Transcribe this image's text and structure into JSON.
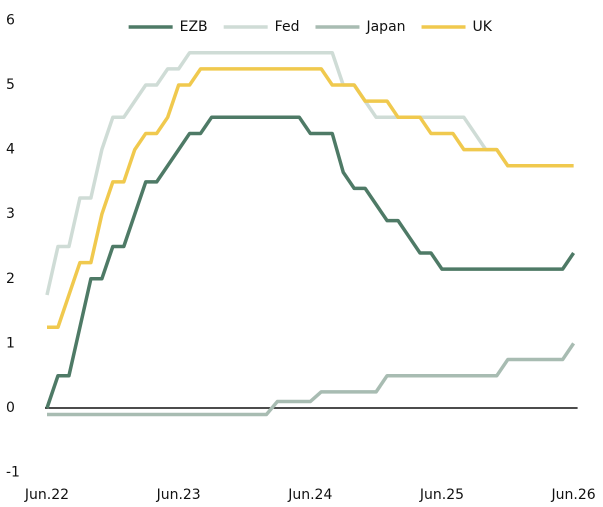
{
  "chart_data": {
    "type": "line",
    "x": [
      "2022-06",
      "2022-07",
      "2022-08",
      "2022-09",
      "2022-10",
      "2022-11",
      "2022-12",
      "2023-01",
      "2023-02",
      "2023-03",
      "2023-04",
      "2023-05",
      "2023-06",
      "2023-07",
      "2023-08",
      "2023-09",
      "2023-10",
      "2023-11",
      "2023-12",
      "2024-01",
      "2024-02",
      "2024-03",
      "2024-04",
      "2024-05",
      "2024-06",
      "2024-07",
      "2024-08",
      "2024-09",
      "2024-10",
      "2024-11",
      "2024-12",
      "2025-01",
      "2025-02",
      "2025-03",
      "2025-04",
      "2025-05",
      "2025-06",
      "2025-07",
      "2025-08",
      "2025-09",
      "2025-10",
      "2025-11",
      "2025-12",
      "2026-01",
      "2026-02",
      "2026-03",
      "2026-04",
      "2026-05",
      "2026-06"
    ],
    "series": [
      {
        "name": "EZB",
        "color": "#4e7a66",
        "values": [
          0,
          0.5,
          0.5,
          1.25,
          2,
          2,
          2.5,
          2.5,
          3,
          3.5,
          3.5,
          3.75,
          4,
          4.25,
          4.25,
          4.5,
          4.5,
          4.5,
          4.5,
          4.5,
          4.5,
          4.5,
          4.5,
          4.5,
          4.25,
          4.25,
          4.25,
          3.65,
          3.4,
          3.4,
          3.15,
          2.9,
          2.9,
          2.65,
          2.4,
          2.4,
          2.15,
          2.15,
          2.15,
          2.15,
          2.15,
          2.15,
          2.15,
          2.15,
          2.15,
          2.15,
          2.15,
          2.15,
          2.4
        ]
      },
      {
        "name": "Fed",
        "color": "#cfdcd6",
        "values": [
          1.75,
          2.5,
          2.5,
          3.25,
          3.25,
          4,
          4.5,
          4.5,
          4.75,
          5,
          5,
          5.25,
          5.25,
          5.5,
          5.5,
          5.5,
          5.5,
          5.5,
          5.5,
          5.5,
          5.5,
          5.5,
          5.5,
          5.5,
          5.5,
          5.5,
          5.5,
          5,
          5,
          4.75,
          4.5,
          4.5,
          4.5,
          4.5,
          4.5,
          4.5,
          4.5,
          4.5,
          4.5,
          4.25,
          4,
          4,
          3.75,
          3.75,
          3.75,
          3.75,
          3.75,
          3.75,
          3.75
        ]
      },
      {
        "name": "Japan",
        "color": "#a8bcb2",
        "values": [
          -0.1,
          -0.1,
          -0.1,
          -0.1,
          -0.1,
          -0.1,
          -0.1,
          -0.1,
          -0.1,
          -0.1,
          -0.1,
          -0.1,
          -0.1,
          -0.1,
          -0.1,
          -0.1,
          -0.1,
          -0.1,
          -0.1,
          -0.1,
          -0.1,
          0.1,
          0.1,
          0.1,
          0.1,
          0.25,
          0.25,
          0.25,
          0.25,
          0.25,
          0.25,
          0.5,
          0.5,
          0.5,
          0.5,
          0.5,
          0.5,
          0.5,
          0.5,
          0.5,
          0.5,
          0.5,
          0.75,
          0.75,
          0.75,
          0.75,
          0.75,
          0.75,
          1
        ]
      },
      {
        "name": "UK",
        "color": "#f0c94e",
        "values": [
          1.25,
          1.25,
          1.75,
          2.25,
          2.25,
          3,
          3.5,
          3.5,
          4,
          4.25,
          4.25,
          4.5,
          5,
          5,
          5.25,
          5.25,
          5.25,
          5.25,
          5.25,
          5.25,
          5.25,
          5.25,
          5.25,
          5.25,
          5.25,
          5.25,
          5,
          5,
          5,
          4.75,
          4.75,
          4.75,
          4.5,
          4.5,
          4.5,
          4.25,
          4.25,
          4.25,
          4,
          4,
          4,
          4,
          3.75,
          3.75,
          3.75,
          3.75,
          3.75,
          3.75,
          3.75
        ]
      }
    ],
    "ylim": [
      -1,
      6
    ],
    "yticks": [
      -1,
      0,
      1,
      2,
      3,
      4,
      5,
      6
    ],
    "xticks": [
      {
        "value": "2022-06",
        "label": "Jun.22"
      },
      {
        "value": "2023-06",
        "label": "Jun.23"
      },
      {
        "value": "2024-06",
        "label": "Jun.24"
      },
      {
        "value": "2025-06",
        "label": "Jun.25"
      },
      {
        "value": "2026-06",
        "label": "Jun.26"
      }
    ],
    "legend": "top",
    "grid": false
  }
}
